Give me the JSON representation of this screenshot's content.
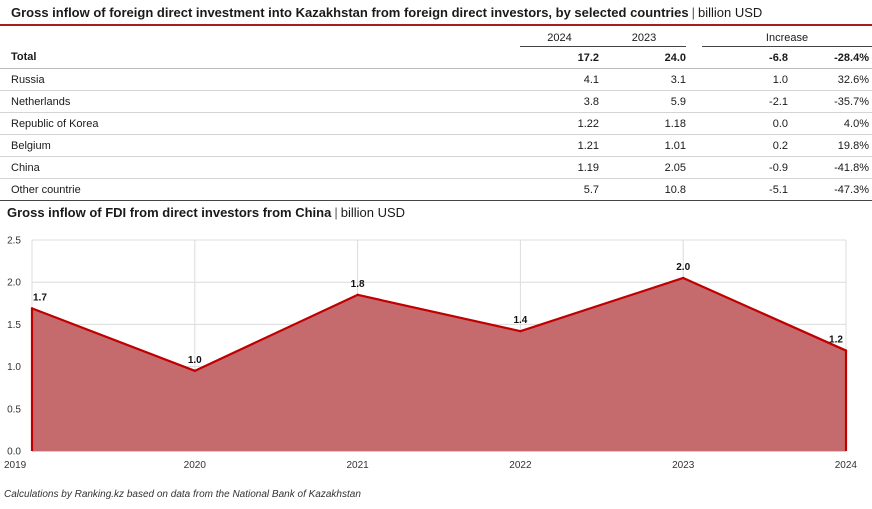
{
  "header": {
    "title": "Gross inflow of foreign direct investment into Kazakhstan from foreign direct investors, by selected countries",
    "unit": "billion USD",
    "separator": "|"
  },
  "table": {
    "columns": {
      "y2024": "2024",
      "y2023": "2023",
      "increase": "Increase"
    },
    "rows": [
      {
        "name": "Total",
        "v2024": "17.2",
        "v2023": "24.0",
        "abs": "-6.8",
        "pct": "-28.4%"
      },
      {
        "name": "Russia",
        "v2024": "4.1",
        "v2023": "3.1",
        "abs": "1.0",
        "pct": "32.6%"
      },
      {
        "name": "Netherlands",
        "v2024": "3.8",
        "v2023": "5.9",
        "abs": "-2.1",
        "pct": "-35.7%"
      },
      {
        "name": "Republic of Korea",
        "v2024": "1.22",
        "v2023": "1.18",
        "abs": "0.0",
        "pct": "4.0%"
      },
      {
        "name": "Belgium",
        "v2024": "1.21",
        "v2023": "1.01",
        "abs": "0.2",
        "pct": "19.8%"
      },
      {
        "name": "China",
        "v2024": "1.19",
        "v2023": "2.05",
        "abs": "-0.9",
        "pct": "-41.8%"
      },
      {
        "name": "Other countrie",
        "v2024": "5.7",
        "v2023": "10.8",
        "abs": "-5.1",
        "pct": "-47.3%"
      }
    ]
  },
  "chart_title": {
    "main": "Gross inflow of FDI from direct investors from China",
    "unit": "billion USD",
    "separator": "|"
  },
  "chart_data": {
    "type": "area",
    "title": "Gross inflow of FDI from direct investors from China",
    "ylabel": "billion USD",
    "xlabel": "",
    "x": [
      "2019",
      "2020",
      "2021",
      "2022",
      "2023",
      "2024"
    ],
    "values": [
      1.69,
      0.95,
      1.85,
      1.42,
      2.05,
      1.19
    ],
    "data_labels": [
      "1.7",
      "1.0",
      "1.8",
      "1.4",
      "2.0",
      "1.2"
    ],
    "ylim": [
      0,
      2.5
    ],
    "yticks": [
      "0.0",
      "0.5",
      "1.0",
      "1.5",
      "2.0",
      "2.5"
    ],
    "grid": true,
    "colors": {
      "fill": "#c56a6d",
      "line": "#c00000"
    }
  },
  "footer": "Calculations by Ranking.kz based on data from the National Bank of Kazakhstan"
}
